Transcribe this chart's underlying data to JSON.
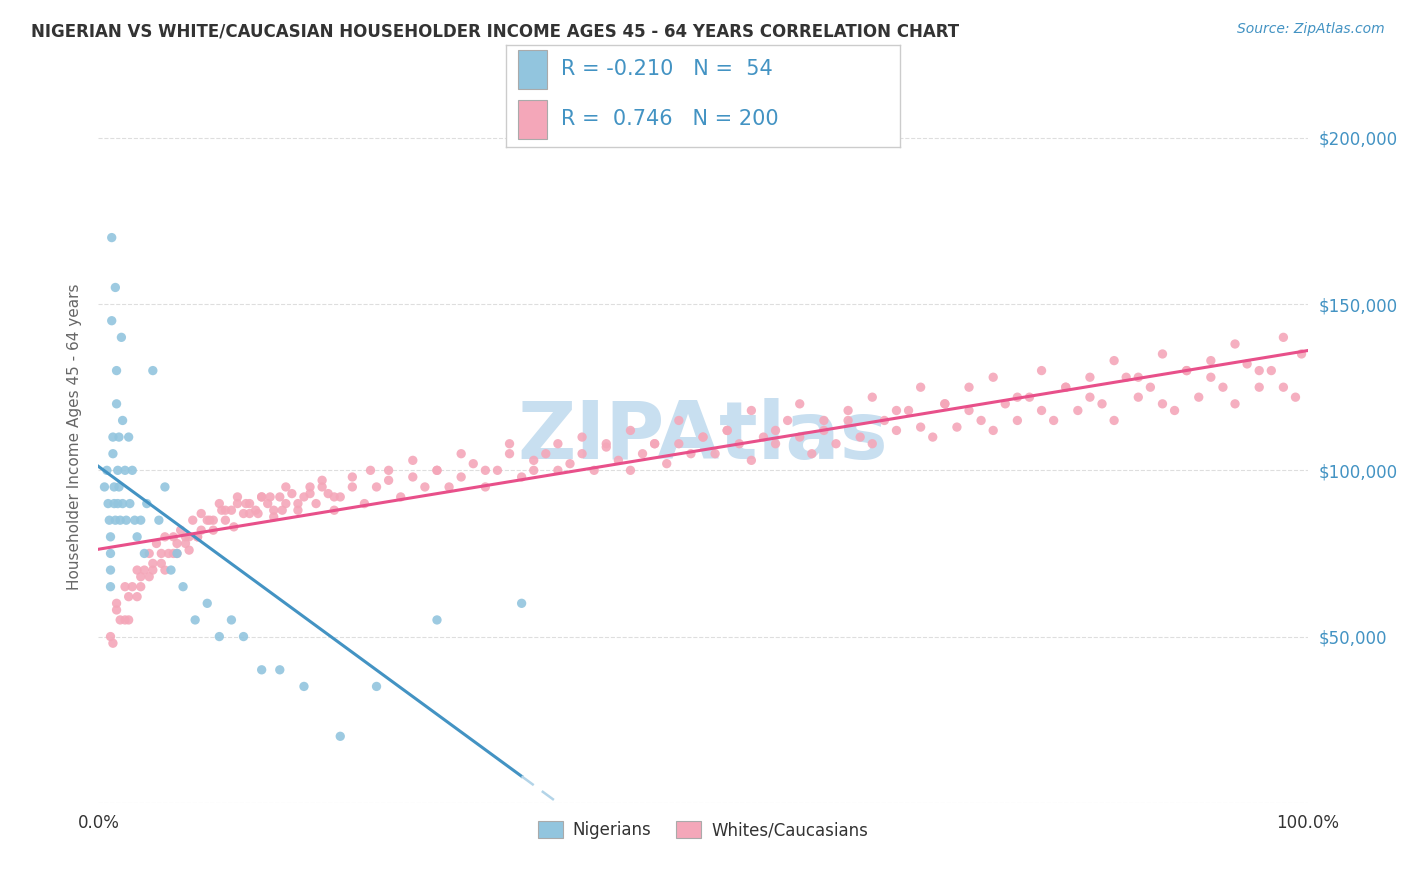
{
  "title": "NIGERIAN VS WHITE/CAUCASIAN HOUSEHOLDER INCOME AGES 45 - 64 YEARS CORRELATION CHART",
  "source": "Source: ZipAtlas.com",
  "ylabel": "Householder Income Ages 45 - 64 years",
  "xmin": 0.0,
  "xmax": 1.0,
  "ymin": 0,
  "ymax": 220000,
  "yticks": [
    0,
    50000,
    100000,
    150000,
    200000
  ],
  "ytick_labels": [
    "",
    "$50,000",
    "$100,000",
    "$150,000",
    "$200,000"
  ],
  "blue_scatter_x": [
    0.005,
    0.007,
    0.008,
    0.009,
    0.01,
    0.01,
    0.01,
    0.01,
    0.011,
    0.011,
    0.012,
    0.012,
    0.013,
    0.013,
    0.014,
    0.014,
    0.015,
    0.015,
    0.016,
    0.016,
    0.017,
    0.017,
    0.018,
    0.019,
    0.02,
    0.02,
    0.022,
    0.023,
    0.025,
    0.026,
    0.028,
    0.03,
    0.032,
    0.035,
    0.038,
    0.04,
    0.045,
    0.05,
    0.055,
    0.06,
    0.065,
    0.07,
    0.08,
    0.09,
    0.1,
    0.11,
    0.12,
    0.135,
    0.15,
    0.17,
    0.2,
    0.23,
    0.28,
    0.35
  ],
  "blue_scatter_y": [
    95000,
    100000,
    90000,
    85000,
    80000,
    75000,
    70000,
    65000,
    170000,
    145000,
    110000,
    105000,
    95000,
    90000,
    85000,
    155000,
    130000,
    120000,
    100000,
    90000,
    110000,
    95000,
    85000,
    140000,
    115000,
    90000,
    100000,
    85000,
    110000,
    90000,
    100000,
    85000,
    80000,
    85000,
    75000,
    90000,
    130000,
    85000,
    95000,
    70000,
    75000,
    65000,
    55000,
    60000,
    50000,
    55000,
    50000,
    40000,
    40000,
    35000,
    20000,
    35000,
    55000,
    60000
  ],
  "pink_scatter_x": [
    0.01,
    0.015,
    0.018,
    0.022,
    0.025,
    0.028,
    0.032,
    0.035,
    0.038,
    0.042,
    0.045,
    0.048,
    0.052,
    0.055,
    0.058,
    0.062,
    0.065,
    0.068,
    0.072,
    0.075,
    0.078,
    0.082,
    0.085,
    0.09,
    0.095,
    0.1,
    0.105,
    0.11,
    0.115,
    0.12,
    0.125,
    0.13,
    0.135,
    0.14,
    0.145,
    0.15,
    0.155,
    0.16,
    0.165,
    0.17,
    0.175,
    0.18,
    0.185,
    0.19,
    0.195,
    0.2,
    0.21,
    0.22,
    0.23,
    0.24,
    0.25,
    0.26,
    0.27,
    0.28,
    0.29,
    0.3,
    0.31,
    0.32,
    0.33,
    0.34,
    0.35,
    0.36,
    0.37,
    0.38,
    0.39,
    0.4,
    0.41,
    0.42,
    0.43,
    0.44,
    0.45,
    0.46,
    0.47,
    0.48,
    0.49,
    0.5,
    0.51,
    0.52,
    0.53,
    0.54,
    0.55,
    0.56,
    0.57,
    0.58,
    0.59,
    0.6,
    0.61,
    0.62,
    0.63,
    0.64,
    0.65,
    0.66,
    0.67,
    0.68,
    0.69,
    0.7,
    0.71,
    0.72,
    0.73,
    0.74,
    0.75,
    0.76,
    0.77,
    0.78,
    0.79,
    0.8,
    0.81,
    0.82,
    0.83,
    0.84,
    0.85,
    0.86,
    0.87,
    0.88,
    0.89,
    0.9,
    0.91,
    0.92,
    0.93,
    0.94,
    0.95,
    0.96,
    0.97,
    0.98,
    0.99,
    0.995,
    0.015,
    0.025,
    0.035,
    0.045,
    0.055,
    0.065,
    0.075,
    0.085,
    0.095,
    0.105,
    0.115,
    0.125,
    0.135,
    0.145,
    0.155,
    0.165,
    0.175,
    0.185,
    0.195,
    0.21,
    0.225,
    0.24,
    0.26,
    0.28,
    0.3,
    0.32,
    0.34,
    0.36,
    0.38,
    0.4,
    0.42,
    0.44,
    0.46,
    0.48,
    0.5,
    0.52,
    0.54,
    0.56,
    0.58,
    0.6,
    0.62,
    0.64,
    0.66,
    0.68,
    0.7,
    0.72,
    0.74,
    0.76,
    0.78,
    0.8,
    0.82,
    0.84,
    0.86,
    0.88,
    0.9,
    0.92,
    0.94,
    0.96,
    0.98,
    0.012,
    0.022,
    0.032,
    0.042,
    0.052,
    0.062,
    0.072,
    0.082,
    0.092,
    0.102,
    0.112,
    0.122,
    0.132,
    0.142,
    0.152
  ],
  "pink_scatter_y": [
    50000,
    60000,
    55000,
    65000,
    55000,
    65000,
    70000,
    65000,
    70000,
    75000,
    70000,
    78000,
    75000,
    80000,
    75000,
    80000,
    75000,
    82000,
    80000,
    76000,
    85000,
    80000,
    87000,
    85000,
    82000,
    90000,
    85000,
    88000,
    92000,
    87000,
    90000,
    88000,
    92000,
    90000,
    86000,
    92000,
    90000,
    93000,
    88000,
    92000,
    95000,
    90000,
    95000,
    93000,
    88000,
    92000,
    95000,
    90000,
    95000,
    100000,
    92000,
    98000,
    95000,
    100000,
    95000,
    98000,
    102000,
    95000,
    100000,
    105000,
    98000,
    100000,
    105000,
    100000,
    102000,
    105000,
    100000,
    108000,
    103000,
    100000,
    105000,
    108000,
    102000,
    108000,
    105000,
    110000,
    105000,
    112000,
    108000,
    103000,
    110000,
    108000,
    115000,
    110000,
    105000,
    112000,
    108000,
    115000,
    110000,
    108000,
    115000,
    112000,
    118000,
    113000,
    110000,
    120000,
    113000,
    118000,
    115000,
    112000,
    120000,
    115000,
    122000,
    118000,
    115000,
    125000,
    118000,
    122000,
    120000,
    115000,
    128000,
    122000,
    125000,
    120000,
    118000,
    130000,
    122000,
    128000,
    125000,
    120000,
    132000,
    125000,
    130000,
    125000,
    122000,
    135000,
    58000,
    62000,
    68000,
    72000,
    70000,
    78000,
    80000,
    82000,
    85000,
    88000,
    90000,
    87000,
    92000,
    88000,
    95000,
    90000,
    93000,
    97000,
    92000,
    98000,
    100000,
    97000,
    103000,
    100000,
    105000,
    100000,
    108000,
    103000,
    108000,
    110000,
    107000,
    112000,
    108000,
    115000,
    110000,
    112000,
    118000,
    112000,
    120000,
    115000,
    118000,
    122000,
    118000,
    125000,
    120000,
    125000,
    128000,
    122000,
    130000,
    125000,
    128000,
    133000,
    128000,
    135000,
    130000,
    133000,
    138000,
    130000,
    140000,
    48000,
    55000,
    62000,
    68000,
    72000,
    75000,
    78000,
    80000,
    85000,
    88000,
    83000,
    90000,
    87000,
    92000,
    88000
  ],
  "blue_color": "#92c5de",
  "pink_color": "#f4a7b9",
  "blue_line_color": "#4393c3",
  "pink_line_color": "#e8508a",
  "dashed_line_color": "#b3d4e8",
  "watermark_text": "ZIPAtlas",
  "watermark_color": "#c8dff0",
  "legend_r_blue": "-0.210",
  "legend_n_blue": "54",
  "legend_r_pink": "0.746",
  "legend_n_pink": "200",
  "legend_label_blue": "Nigerians",
  "legend_label_pink": "Whites/Caucasians",
  "background_color": "#ffffff",
  "grid_color": "#d0d0d0",
  "title_color": "#333333",
  "source_color": "#4393c3",
  "ylabel_color": "#666666",
  "ytick_color": "#4393c3",
  "xtick_color": "#333333",
  "legend_text_color": "#4393c3"
}
